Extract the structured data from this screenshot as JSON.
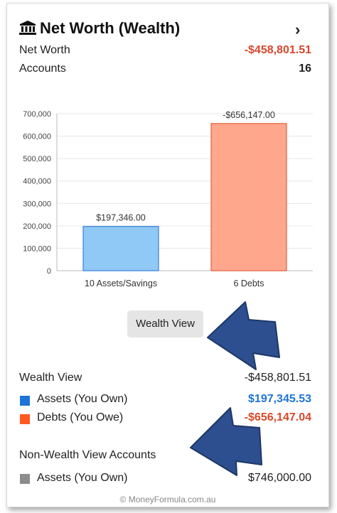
{
  "header": {
    "title": "Net Worth (Wealth)",
    "icon": "bank-icon",
    "chevron": "chevron-right-icon"
  },
  "summary": {
    "net_worth_label": "Net Worth",
    "net_worth_value": "-$458,801.51",
    "accounts_label": "Accounts",
    "accounts_value": "16"
  },
  "chart_data": {
    "type": "bar",
    "categories": [
      "10 Assets/Savings",
      "6 Debts"
    ],
    "values": [
      197346.0,
      656147.0
    ],
    "data_labels": [
      "$197,346.00",
      "-$656,147.00"
    ],
    "colors": [
      "#90c8f6",
      "#ffa78c"
    ],
    "stroke_colors": [
      "#3a7fd5",
      "#e0603e"
    ],
    "ylim": [
      0,
      700000
    ],
    "yticks": [
      "0",
      "100,000",
      "200,000",
      "300,000",
      "400,000",
      "500,000",
      "600,000",
      "700,000"
    ],
    "grid": true,
    "title": "",
    "xlabel": "",
    "ylabel": ""
  },
  "wealth_view_button": "Wealth View",
  "wealth_view": {
    "label": "Wealth View",
    "value": "-$458,801.51",
    "assets_label": "Assets (You Own)",
    "assets_value": "$197,345.53",
    "assets_color": "#1e73d6",
    "debts_label": "Debts (You Owe)",
    "debts_value": "-$656,147.04",
    "debts_color": "#ff5a1f"
  },
  "non_wealth": {
    "label": "Non-Wealth View Accounts",
    "assets_label": "Assets (You Own)",
    "assets_value": "$746,000.00",
    "assets_color": "#8c8c8c"
  },
  "footer": "© MoneyFormula.com.au"
}
